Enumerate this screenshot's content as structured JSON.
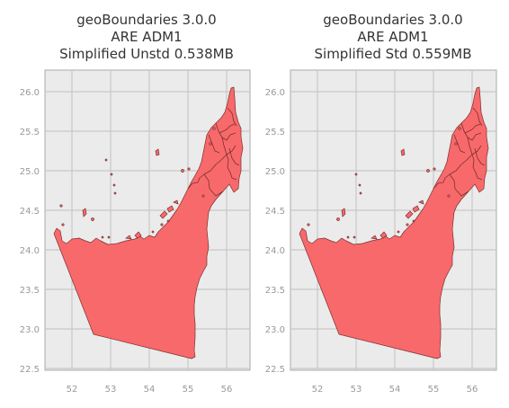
{
  "panels": [
    {
      "title": [
        "geoBoundaries 3.0.0",
        "ARE ADM1",
        "Simplified Unstd 0.538MB"
      ],
      "xticks": [
        "52",
        "53",
        "54",
        "55",
        "56"
      ],
      "yticks": [
        "26.0",
        "25.5",
        "25.0",
        "24.5",
        "24.0",
        "23.5",
        "23.0",
        "22.5"
      ]
    },
    {
      "title": [
        "geoBoundaries 3.0.0",
        "ARE ADM1",
        "Simplified Std 0.559MB"
      ],
      "xticks": [
        "52",
        "53",
        "54",
        "55",
        "56"
      ],
      "yticks": [
        "26.0",
        "25.5",
        "25.0",
        "24.5",
        "24.0",
        "23.5",
        "23.0",
        "22.5"
      ]
    }
  ],
  "colors": {
    "background": "#ebebeb",
    "grid": "#c8c8c8",
    "frame": "#aaaaaa",
    "fill": "#f8696b",
    "edge": "#7a3030"
  },
  "map": {
    "xlim": [
      51.3,
      56.5
    ],
    "ylim": [
      22.45,
      26.15
    ]
  }
}
